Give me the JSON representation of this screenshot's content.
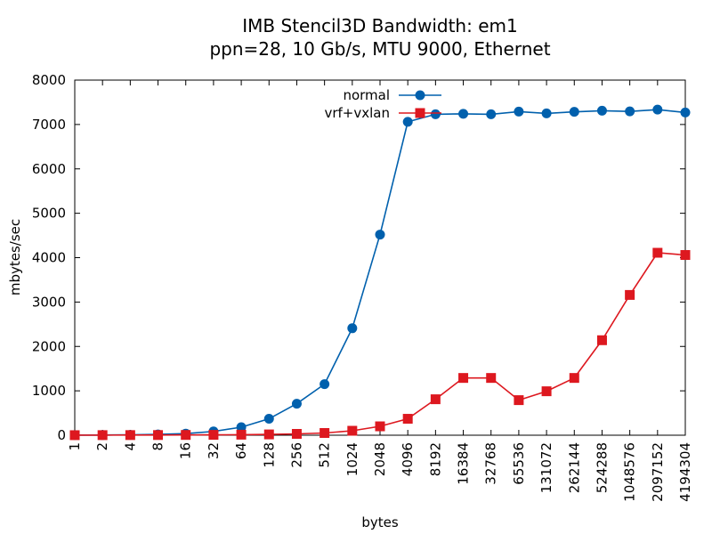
{
  "chart_data": {
    "type": "line",
    "title": "IMB Stencil3D Bandwidth: em1",
    "subtitle": "ppn=28, 10 Gb/s, MTU 9000, Ethernet",
    "xlabel": "bytes",
    "ylabel": "mbytes/sec",
    "ylim": [
      0,
      8000
    ],
    "yticks": [
      "0",
      "1000",
      "2000",
      "3000",
      "4000",
      "5000",
      "6000",
      "7000",
      "8000"
    ],
    "categories": [
      "1",
      "2",
      "4",
      "8",
      "16",
      "32",
      "64",
      "128",
      "256",
      "512",
      "1024",
      "2048",
      "4096",
      "8192",
      "16384",
      "32768",
      "65536",
      "131072",
      "262144",
      "524288",
      "1048576",
      "2097152",
      "4194304"
    ],
    "grid": false,
    "legend_position": "top-center",
    "series": [
      {
        "name": "normal",
        "color": "#0060ad",
        "marker": "circle",
        "values": [
          2,
          4,
          8,
          18,
          36,
          85,
          180,
          370,
          710,
          1150,
          2410,
          4520,
          7060,
          7230,
          7240,
          7230,
          7290,
          7250,
          7285,
          7310,
          7295,
          7335,
          7270
        ]
      },
      {
        "name": "vrf+vxlan",
        "color": "#dd181f",
        "marker": "square",
        "values": [
          1,
          2,
          3,
          4,
          6,
          8,
          12,
          18,
          30,
          50,
          100,
          200,
          370,
          810,
          1290,
          1290,
          790,
          990,
          1290,
          2140,
          3160,
          4110,
          4060
        ]
      }
    ]
  }
}
